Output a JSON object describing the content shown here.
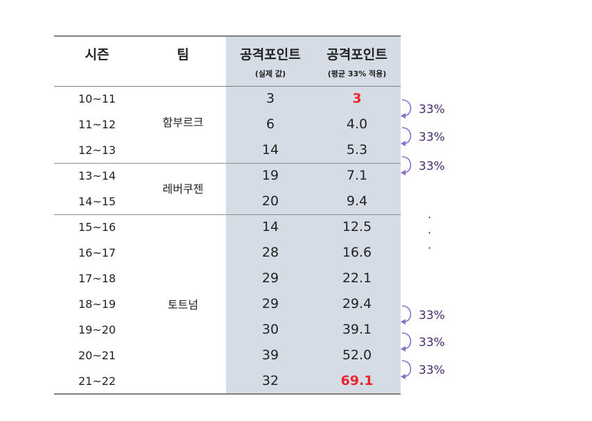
{
  "header": {
    "season": "시즌",
    "team": "팀",
    "actual_title": "공격포인트",
    "actual_sub": "(실제 값)",
    "applied_title": "공격포인트",
    "applied_sub": "(평균 33% 적용)"
  },
  "rows": [
    {
      "season": "10~11",
      "actual": "3",
      "applied": "3"
    },
    {
      "season": "11~12",
      "actual": "6",
      "applied": "4.0"
    },
    {
      "season": "12~13",
      "actual": "14",
      "applied": "5.3"
    },
    {
      "season": "13~14",
      "actual": "19",
      "applied": "7.1"
    },
    {
      "season": "14~15",
      "actual": "20",
      "applied": "9.4"
    },
    {
      "season": "15~16",
      "actual": "14",
      "applied": "12.5"
    },
    {
      "season": "16~17",
      "actual": "28",
      "applied": "16.6"
    },
    {
      "season": "17~18",
      "actual": "29",
      "applied": "22.1"
    },
    {
      "season": "18~19",
      "actual": "29",
      "applied": "29.4"
    },
    {
      "season": "19~20",
      "actual": "30",
      "applied": "39.1"
    },
    {
      "season": "20~21",
      "actual": "39",
      "applied": "52.0"
    },
    {
      "season": "21~22",
      "actual": "32",
      "applied": "69.1"
    }
  ],
  "teams": [
    {
      "name": "함부르크"
    },
    {
      "name": "레버쿠젠"
    },
    {
      "name": "토트넘"
    }
  ],
  "annotations": [
    "33%",
    "33%",
    "33%",
    "33%",
    "33%",
    "33%"
  ],
  "ellipsis": [
    "·",
    "·",
    "·"
  ],
  "colors": {
    "highlight": "#e8262d",
    "annotation": "#4b2d70",
    "arrow": "#8a6ec9",
    "shade": "#d6dce5"
  }
}
